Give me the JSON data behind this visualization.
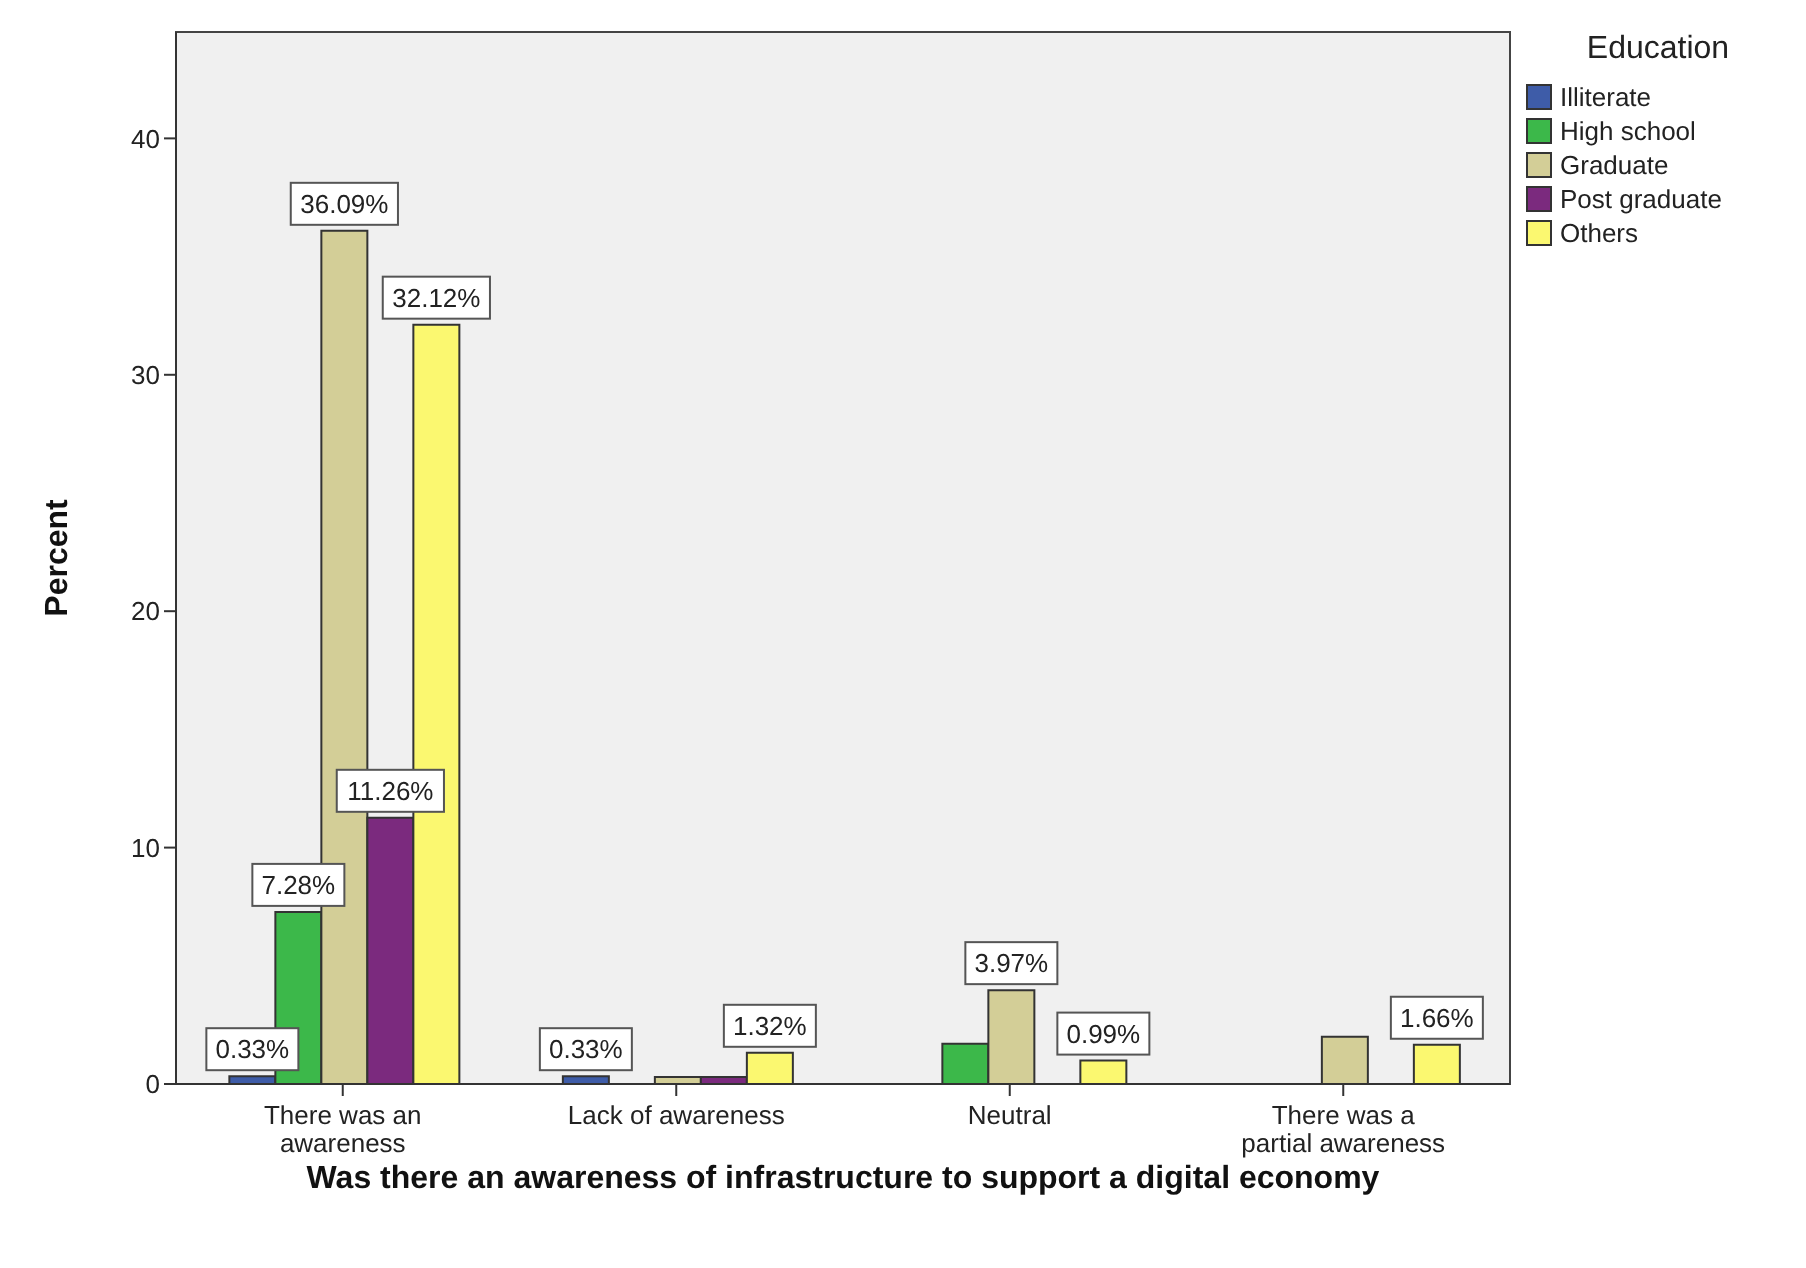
{
  "chart_data": {
    "type": "bar",
    "xlabel": "Was there an awareness of infrastructure to support a digital economy",
    "ylabel": "Percent",
    "legend_title": "Education",
    "legend": "right",
    "categories": [
      "There was an awareness",
      "Lack of awareness",
      "Neutral",
      "There was a partial awareness"
    ],
    "ylim": [
      0,
      44.5
    ],
    "yticks": [
      0,
      10,
      20,
      30,
      40
    ],
    "series": [
      {
        "name": "Illiterate",
        "color": "#3e5ca8",
        "values": [
          0.33,
          0.33,
          null,
          null
        ],
        "value_labels": [
          "0.33%",
          "0.33%",
          null,
          null
        ]
      },
      {
        "name": "High school",
        "color": "#3cb84a",
        "values": [
          7.28,
          null,
          1.7,
          null
        ],
        "value_labels": [
          "7.28%",
          null,
          null,
          null
        ]
      },
      {
        "name": "Graduate",
        "color": "#d3ce97",
        "values": [
          36.09,
          0.3,
          3.97,
          2
        ],
        "value_labels": [
          "36.09%",
          null,
          "3.97%",
          null
        ]
      },
      {
        "name": "Post graduate",
        "color": "#7b2a7e",
        "values": [
          11.26,
          0.3,
          null,
          null
        ],
        "value_labels": [
          "11.26%",
          null,
          null,
          null
        ]
      },
      {
        "name": "Others",
        "color": "#fbf870",
        "values": [
          32.12,
          1.32,
          0.99,
          1.66
        ],
        "value_labels": [
          "32.12%",
          "1.32%",
          "0.99%",
          "1.66%"
        ]
      }
    ]
  }
}
